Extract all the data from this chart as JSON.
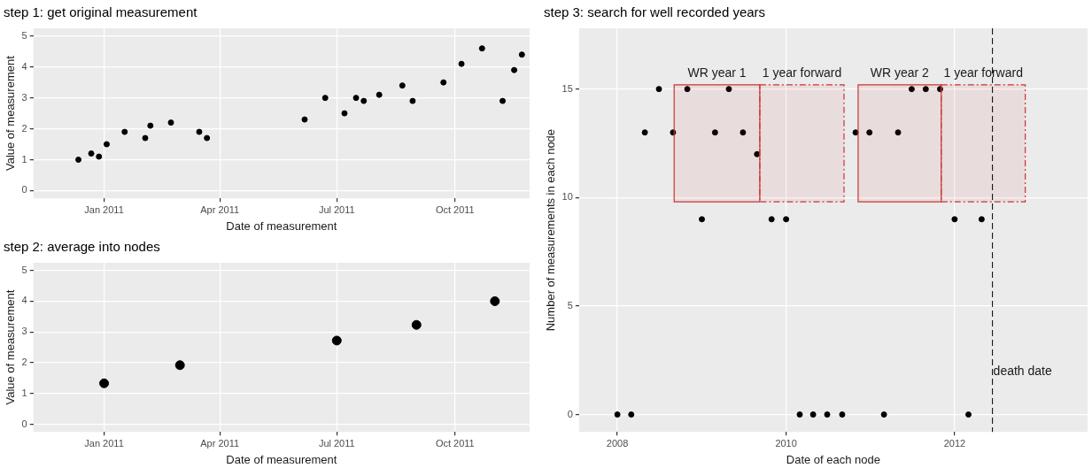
{
  "chart_data": [
    {
      "type": "scatter",
      "title": "step 1: get original measurement",
      "xlabel": "Date of measurement",
      "ylabel": "Value of measurement",
      "color": "#000000",
      "marker": "circle",
      "grid": true,
      "legend": false,
      "x": [
        "2010-12-12",
        "2010-12-22",
        "2010-12-28",
        "2011-01-03",
        "2011-01-17",
        "2011-02-02",
        "2011-02-06",
        "2011-02-22",
        "2011-03-16",
        "2011-03-22",
        "2011-06-06",
        "2011-06-22",
        "2011-07-07",
        "2011-07-16",
        "2011-07-22",
        "2011-08-03",
        "2011-08-21",
        "2011-08-29",
        "2011-09-22",
        "2011-10-06",
        "2011-10-22",
        "2011-11-07",
        "2011-11-16",
        "2011-11-22"
      ],
      "values": [
        1.0,
        1.2,
        1.1,
        1.5,
        1.9,
        1.7,
        2.1,
        2.2,
        1.9,
        1.7,
        2.3,
        3.0,
        2.5,
        3.0,
        2.9,
        3.1,
        3.4,
        2.9,
        3.5,
        4.1,
        4.6,
        2.9,
        3.9,
        4.4
      ],
      "xlim": [
        "2010-11-07",
        "2011-11-28"
      ],
      "xticks": [
        {
          "value": "2011-01-01",
          "label": "Jan 2011"
        },
        {
          "value": "2011-04-01",
          "label": "Apr 2011"
        },
        {
          "value": "2011-07-01",
          "label": "Jul 2011"
        },
        {
          "value": "2011-10-01",
          "label": "Oct 2011"
        }
      ],
      "ylim": [
        -0.25,
        5.25
      ],
      "yticks": [
        0,
        1,
        2,
        3,
        4,
        5
      ]
    },
    {
      "type": "scatter",
      "title": "step 2: average into nodes",
      "xlabel": "Date of measurement",
      "ylabel": "Value of measurement",
      "color": "#000000",
      "marker": "circle",
      "grid": true,
      "legend": false,
      "x": [
        "2011-01-01",
        "2011-03-01",
        "2011-07-01",
        "2011-09-01",
        "2011-11-01"
      ],
      "values": [
        1.33,
        1.92,
        2.72,
        3.23,
        4.0
      ],
      "xlim": [
        "2010-11-07",
        "2011-11-28"
      ],
      "xticks": [
        {
          "value": "2011-01-01",
          "label": "Jan 2011"
        },
        {
          "value": "2011-04-01",
          "label": "Apr 2011"
        },
        {
          "value": "2011-07-01",
          "label": "Jul 2011"
        },
        {
          "value": "2011-10-01",
          "label": "Oct 2011"
        }
      ],
      "ylim": [
        -0.25,
        5.25
      ],
      "yticks": [
        0,
        1,
        2,
        3,
        4,
        5
      ]
    },
    {
      "type": "scatter",
      "title": "step 3: search for well recorded years",
      "xlabel": "Date of each node",
      "ylabel": "Number of measurements in each node",
      "color": "#000000",
      "marker": "circle",
      "grid": true,
      "legend": false,
      "x": [
        "2008-01-01",
        "2008-03-01",
        "2008-04-29",
        "2008-06-29",
        "2008-08-29",
        "2008-10-30",
        "2009-01-01",
        "2009-02-27",
        "2009-04-28",
        "2009-06-28",
        "2009-08-28",
        "2009-10-30",
        "2010-01-01",
        "2010-03-01",
        "2010-04-28",
        "2010-06-28",
        "2010-09-01",
        "2010-10-29",
        "2010-12-28",
        "2011-03-01",
        "2011-05-01",
        "2011-06-29",
        "2011-08-29",
        "2011-10-30",
        "2012-01-01",
        "2012-03-01",
        "2012-04-27"
      ],
      "values": [
        0,
        0,
        13,
        15,
        13,
        15,
        9,
        13,
        15,
        13,
        12,
        9,
        9,
        0,
        0,
        0,
        0,
        13,
        13,
        0,
        13,
        15,
        15,
        15,
        9,
        0,
        9
      ],
      "xlim": [
        "2007-07-19",
        "2013-07-30"
      ],
      "xticks": [
        {
          "value": "2008-01-01",
          "label": "2008"
        },
        {
          "value": "2010-01-01",
          "label": "2010"
        },
        {
          "value": "2012-01-01",
          "label": "2012"
        }
      ],
      "ylim": [
        -0.8,
        17.8
      ],
      "yticks": [
        0,
        5,
        10,
        15
      ],
      "ref_lines": [
        {
          "axis": "x",
          "value": "2012-06-13",
          "label": "death date",
          "color": "#000000",
          "line_style": "dashed"
        }
      ],
      "bands": [
        {
          "axis": "x",
          "from": "2008-09-03",
          "to": "2009-09-09",
          "label": "WR year 1",
          "color": "#cc3333"
        },
        {
          "axis": "x",
          "from": "2009-09-09",
          "to": "2010-09-09",
          "label": "1 year forward",
          "color": "#cc3333"
        },
        {
          "axis": "x",
          "from": "2010-11-09",
          "to": "2011-11-04",
          "label": "WR year 2",
          "color": "#cc3333"
        },
        {
          "axis": "x",
          "from": "2011-11-04",
          "to": "2012-11-02",
          "label": "1 year forward",
          "color": "#cc3333"
        }
      ]
    }
  ]
}
